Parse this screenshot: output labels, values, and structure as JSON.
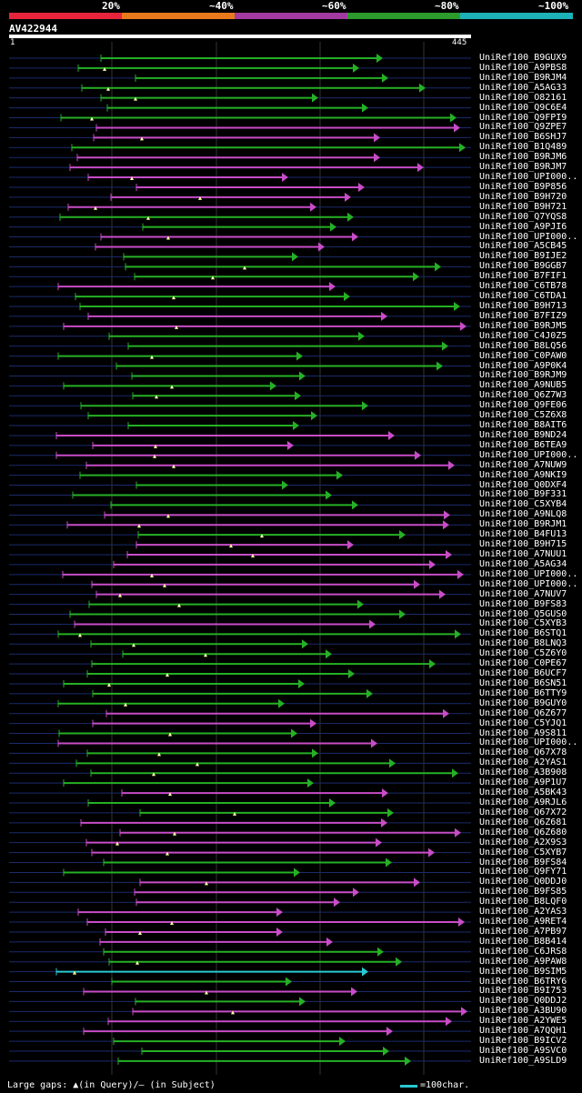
{
  "legend": {
    "bands": [
      {
        "color": "#e8243c"
      },
      {
        "color": "#e87a1c"
      },
      {
        "color": "#a23aa0"
      },
      {
        "color": "#2c9a2c"
      },
      {
        "color": "#1cb2b8"
      }
    ],
    "labels": [
      "20%",
      "~40%",
      "~60%",
      "~80%",
      "~100%"
    ]
  },
  "query": {
    "name": "AV422944",
    "start": "1",
    "end": "445"
  },
  "colors": {
    "green": "#25b025",
    "magenta": "#c84cc8",
    "cyan": "#29c8d2",
    "gap": "#1b2b6b",
    "grid": "#333333"
  },
  "hits": [
    {
      "id": "UniRef100_B9GUX9",
      "color": "green"
    },
    {
      "id": "UniRef100_A9PBS8",
      "color": "green"
    },
    {
      "id": "UniRef100_B9RJM4",
      "color": "green"
    },
    {
      "id": "UniRef100_A5AG33",
      "color": "green"
    },
    {
      "id": "UniRef100_O82161",
      "color": "green"
    },
    {
      "id": "UniRef100_Q9C6E4",
      "color": "green"
    },
    {
      "id": "UniRef100_Q9FPI9",
      "color": "green"
    },
    {
      "id": "UniRef100_Q9ZPE7",
      "color": "magenta"
    },
    {
      "id": "UniRef100_B6SHJ7",
      "color": "magenta"
    },
    {
      "id": "UniRef100_B1Q489",
      "color": "green"
    },
    {
      "id": "UniRef100_B9RJM6",
      "color": "magenta"
    },
    {
      "id": "UniRef100_B9RJM7",
      "color": "magenta"
    },
    {
      "id": "UniRef100_UPI000..",
      "color": "magenta"
    },
    {
      "id": "UniRef100_B9P856",
      "color": "magenta"
    },
    {
      "id": "UniRef100_B9H720",
      "color": "magenta"
    },
    {
      "id": "UniRef100_B9H721",
      "color": "magenta"
    },
    {
      "id": "UniRef100_Q7YQS8",
      "color": "green"
    },
    {
      "id": "UniRef100_A9PJI6",
      "color": "green"
    },
    {
      "id": "UniRef100_UPI000..",
      "color": "magenta"
    },
    {
      "id": "UniRef100_A5CB45",
      "color": "magenta"
    },
    {
      "id": "UniRef100_B9IJE2",
      "color": "green"
    },
    {
      "id": "UniRef100_B9GGB7",
      "color": "green"
    },
    {
      "id": "UniRef100_B7FIF1",
      "color": "green"
    },
    {
      "id": "UniRef100_C6TB78",
      "color": "magenta"
    },
    {
      "id": "UniRef100_C6TDA1",
      "color": "green"
    },
    {
      "id": "UniRef100_B9H713",
      "color": "green"
    },
    {
      "id": "UniRef100_B7FIZ9",
      "color": "magenta"
    },
    {
      "id": "UniRef100_B9RJM5",
      "color": "magenta"
    },
    {
      "id": "UniRef100_C4J0Z5",
      "color": "green"
    },
    {
      "id": "UniRef100_B8LQ56",
      "color": "green"
    },
    {
      "id": "UniRef100_C0PAW0",
      "color": "green"
    },
    {
      "id": "UniRef100_A9P0K4",
      "color": "green"
    },
    {
      "id": "UniRef100_B9RJM9",
      "color": "green"
    },
    {
      "id": "UniRef100_A9NUB5",
      "color": "green"
    },
    {
      "id": "UniRef100_Q6Z7W3",
      "color": "green"
    },
    {
      "id": "UniRef100_Q9FE06",
      "color": "green"
    },
    {
      "id": "UniRef100_C5Z6X8",
      "color": "green"
    },
    {
      "id": "UniRef100_B8AIT6",
      "color": "green"
    },
    {
      "id": "UniRef100_B9ND24",
      "color": "magenta"
    },
    {
      "id": "UniRef100_B6TEA9",
      "color": "magenta"
    },
    {
      "id": "UniRef100_UPI000..",
      "color": "magenta"
    },
    {
      "id": "UniRef100_A7NUW9",
      "color": "magenta"
    },
    {
      "id": "UniRef100_A9NKI9",
      "color": "green"
    },
    {
      "id": "UniRef100_Q0DXF4",
      "color": "green"
    },
    {
      "id": "UniRef100_B9F331",
      "color": "green"
    },
    {
      "id": "UniRef100_C5XYB4",
      "color": "green"
    },
    {
      "id": "UniRef100_A9NLQ8",
      "color": "magenta"
    },
    {
      "id": "UniRef100_B9RJM1",
      "color": "magenta"
    },
    {
      "id": "UniRef100_B4FU13",
      "color": "green"
    },
    {
      "id": "UniRef100_B9H715",
      "color": "magenta"
    },
    {
      "id": "UniRef100_A7NUU1",
      "color": "magenta"
    },
    {
      "id": "UniRef100_A5AG34",
      "color": "magenta"
    },
    {
      "id": "UniRef100_UPI000..",
      "color": "magenta"
    },
    {
      "id": "UniRef100_UPI000..",
      "color": "magenta"
    },
    {
      "id": "UniRef100_A7NUV7",
      "color": "magenta"
    },
    {
      "id": "UniRef100_B9FS83",
      "color": "green"
    },
    {
      "id": "UniRef100_Q5GUS0",
      "color": "green"
    },
    {
      "id": "UniRef100_C5XYB3",
      "color": "magenta"
    },
    {
      "id": "UniRef100_B6STQ1",
      "color": "green"
    },
    {
      "id": "UniRef100_B8LNQ3",
      "color": "green"
    },
    {
      "id": "UniRef100_C5Z6Y0",
      "color": "green"
    },
    {
      "id": "UniRef100_C0PE67",
      "color": "green"
    },
    {
      "id": "UniRef100_B6UCF7",
      "color": "green"
    },
    {
      "id": "UniRef100_B6SN51",
      "color": "green"
    },
    {
      "id": "UniRef100_B6TTY9",
      "color": "green"
    },
    {
      "id": "UniRef100_B9GUY0",
      "color": "green"
    },
    {
      "id": "UniRef100_Q6Z677",
      "color": "magenta"
    },
    {
      "id": "UniRef100_C5YJQ1",
      "color": "magenta"
    },
    {
      "id": "UniRef100_A9S811",
      "color": "green"
    },
    {
      "id": "UniRef100_UPI000..",
      "color": "magenta"
    },
    {
      "id": "UniRef100_Q67X78",
      "color": "green"
    },
    {
      "id": "UniRef100_A2YAS1",
      "color": "green"
    },
    {
      "id": "UniRef100_A3B908",
      "color": "green"
    },
    {
      "id": "UniRef100_A9P1U7",
      "color": "green"
    },
    {
      "id": "UniRef100_A5BK43",
      "color": "magenta"
    },
    {
      "id": "UniRef100_A9RJL6",
      "color": "green"
    },
    {
      "id": "UniRef100_Q67X72",
      "color": "green"
    },
    {
      "id": "UniRef100_Q6Z681",
      "color": "magenta"
    },
    {
      "id": "UniRef100_Q6Z680",
      "color": "magenta"
    },
    {
      "id": "UniRef100_A2X9S3",
      "color": "magenta"
    },
    {
      "id": "UniRef100_C5XYB7",
      "color": "magenta"
    },
    {
      "id": "UniRef100_B9FS84",
      "color": "green"
    },
    {
      "id": "UniRef100_Q9FY71",
      "color": "green"
    },
    {
      "id": "UniRef100_Q0DDJ0",
      "color": "magenta"
    },
    {
      "id": "UniRef100_B9FS85",
      "color": "magenta"
    },
    {
      "id": "UniRef100_B8LQF0",
      "color": "magenta"
    },
    {
      "id": "UniRef100_A2YAS3",
      "color": "magenta"
    },
    {
      "id": "UniRef100_A9RET4",
      "color": "magenta"
    },
    {
      "id": "UniRef100_A7PB97",
      "color": "magenta"
    },
    {
      "id": "UniRef100_B8B414",
      "color": "magenta"
    },
    {
      "id": "UniRef100_C6JRS8",
      "color": "green"
    },
    {
      "id": "UniRef100_A9PAW8",
      "color": "green"
    },
    {
      "id": "UniRef100_B9SIM5",
      "color": "cyan"
    },
    {
      "id": "UniRef100_B6TRY6",
      "color": "green"
    },
    {
      "id": "UniRef100_B9I753",
      "color": "magenta"
    },
    {
      "id": "UniRef100_Q0DDJ2",
      "color": "green"
    },
    {
      "id": "UniRef100_A3BU90",
      "color": "magenta"
    },
    {
      "id": "UniRef100_A2YWE5",
      "color": "magenta"
    },
    {
      "id": "UniRef100_A7QQH1",
      "color": "magenta"
    },
    {
      "id": "UniRef100_B9ICV2",
      "color": "green"
    },
    {
      "id": "UniRef100_A9SVC0",
      "color": "green"
    },
    {
      "id": "UniRef100_A9SLD9",
      "color": "green"
    }
  ],
  "footer": {
    "gaps_text": "Large gaps: ▲(in Query)/— (in Subject)",
    "scale_text": "=100char."
  }
}
